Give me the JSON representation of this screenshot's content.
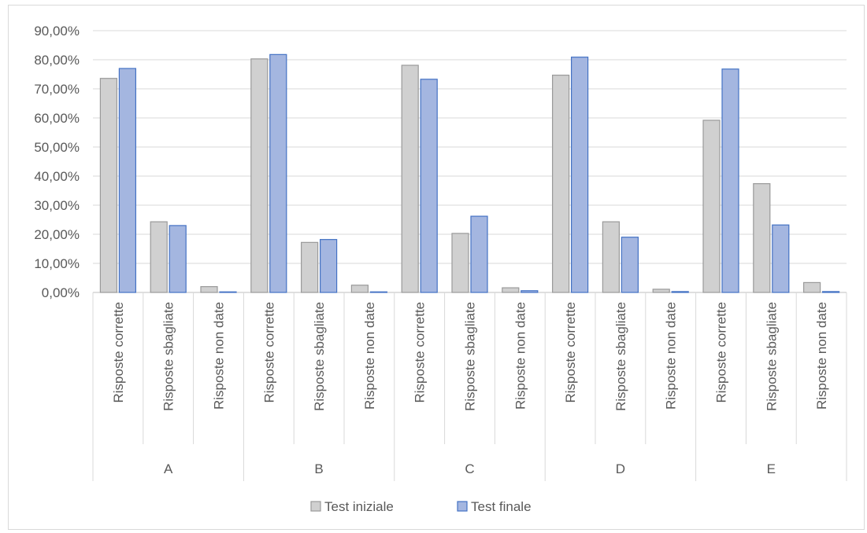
{
  "chart_data": {
    "type": "bar",
    "title": "",
    "xlabel": "",
    "ylabel": "",
    "ylim": [
      0,
      0.9
    ],
    "yticks": [
      "0,00%",
      "10,00%",
      "20,00%",
      "30,00%",
      "40,00%",
      "50,00%",
      "60,00%",
      "70,00%",
      "80,00%",
      "90,00%"
    ],
    "grid": true,
    "legend_position": "bottom",
    "groups": [
      "A",
      "B",
      "C",
      "D",
      "E"
    ],
    "subcategories": [
      "Risposte corrette",
      "Risposte sbagliate",
      "Risposte non date"
    ],
    "series": [
      {
        "name": "Test iniziale",
        "color": "#d0d0d0",
        "values": [
          0.736,
          0.243,
          0.02,
          0.803,
          0.172,
          0.025,
          0.781,
          0.203,
          0.016,
          0.747,
          0.243,
          0.011,
          0.592,
          0.374,
          0.034
        ]
      },
      {
        "name": "Test finale",
        "color": "#a4b6e0",
        "values": [
          0.77,
          0.23,
          0.002,
          0.818,
          0.182,
          0.002,
          0.733,
          0.262,
          0.006,
          0.809,
          0.19,
          0.003,
          0.768,
          0.232,
          0.003
        ]
      }
    ]
  }
}
